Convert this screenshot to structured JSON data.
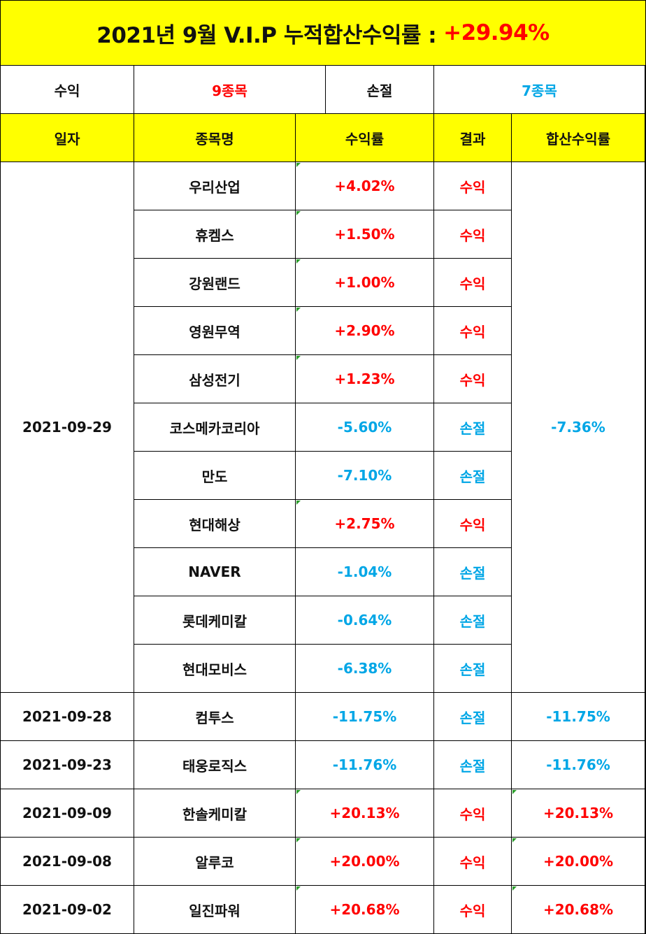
{
  "title": {
    "text": "2021년 9월 V.I.P 누적합산수익률 :",
    "rate": "+29.94%"
  },
  "summary": {
    "profit_label": "수익",
    "profit_value": "9종목",
    "loss_label": "손절",
    "loss_value": "7종목"
  },
  "headers": [
    "일자",
    "종목명",
    "수익률",
    "결과",
    "합산수익률"
  ],
  "groups": [
    {
      "date": "2021-09-29",
      "total": "-7.36%",
      "total_color": "blue",
      "rows": [
        {
          "name": "우리산업",
          "rate": "+4.02%",
          "result": "수익",
          "color": "red"
        },
        {
          "name": "휴켐스",
          "rate": "+1.50%",
          "result": "수익",
          "color": "red"
        },
        {
          "name": "강원랜드",
          "rate": "+1.00%",
          "result": "수익",
          "color": "red"
        },
        {
          "name": "영원무역",
          "rate": "+2.90%",
          "result": "수익",
          "color": "red"
        },
        {
          "name": "삼성전기",
          "rate": "+1.23%",
          "result": "수익",
          "color": "red"
        },
        {
          "name": "코스메카코리아",
          "rate": "-5.60%",
          "result": "손절",
          "color": "blue"
        },
        {
          "name": "만도",
          "rate": "-7.10%",
          "result": "손절",
          "color": "blue"
        },
        {
          "name": "현대해상",
          "rate": "+2.75%",
          "result": "수익",
          "color": "red"
        },
        {
          "name": "NAVER",
          "rate": "-1.04%",
          "result": "손절",
          "color": "blue"
        },
        {
          "name": "롯데케미칼",
          "rate": "-0.64%",
          "result": "손절",
          "color": "blue"
        },
        {
          "name": "현대모비스",
          "rate": "-6.38%",
          "result": "손절",
          "color": "blue"
        }
      ]
    },
    {
      "date": "2021-09-28",
      "total": "-11.75%",
      "total_color": "blue",
      "rows": [
        {
          "name": "컴투스",
          "rate": "-11.75%",
          "result": "손절",
          "color": "blue"
        }
      ]
    },
    {
      "date": "2021-09-23",
      "total": "-11.76%",
      "total_color": "blue",
      "rows": [
        {
          "name": "태웅로직스",
          "rate": "-11.76%",
          "result": "손절",
          "color": "blue"
        }
      ]
    },
    {
      "date": "2021-09-09",
      "total": "+20.13%",
      "total_color": "red",
      "rows": [
        {
          "name": "한솔케미칼",
          "rate": "+20.13%",
          "result": "수익",
          "color": "red"
        }
      ]
    },
    {
      "date": "2021-09-08",
      "total": "+20.00%",
      "total_color": "red",
      "rows": [
        {
          "name": "알루코",
          "rate": "+20.00%",
          "result": "수익",
          "color": "red"
        }
      ]
    },
    {
      "date": "2021-09-02",
      "total": "+20.68%",
      "total_color": "red",
      "rows": [
        {
          "name": "일진파워",
          "rate": "+20.68%",
          "result": "수익",
          "color": "red"
        }
      ]
    }
  ],
  "colors": {
    "highlight": "#ffff00",
    "profit": "#ff0000",
    "loss": "#00a6e6"
  }
}
